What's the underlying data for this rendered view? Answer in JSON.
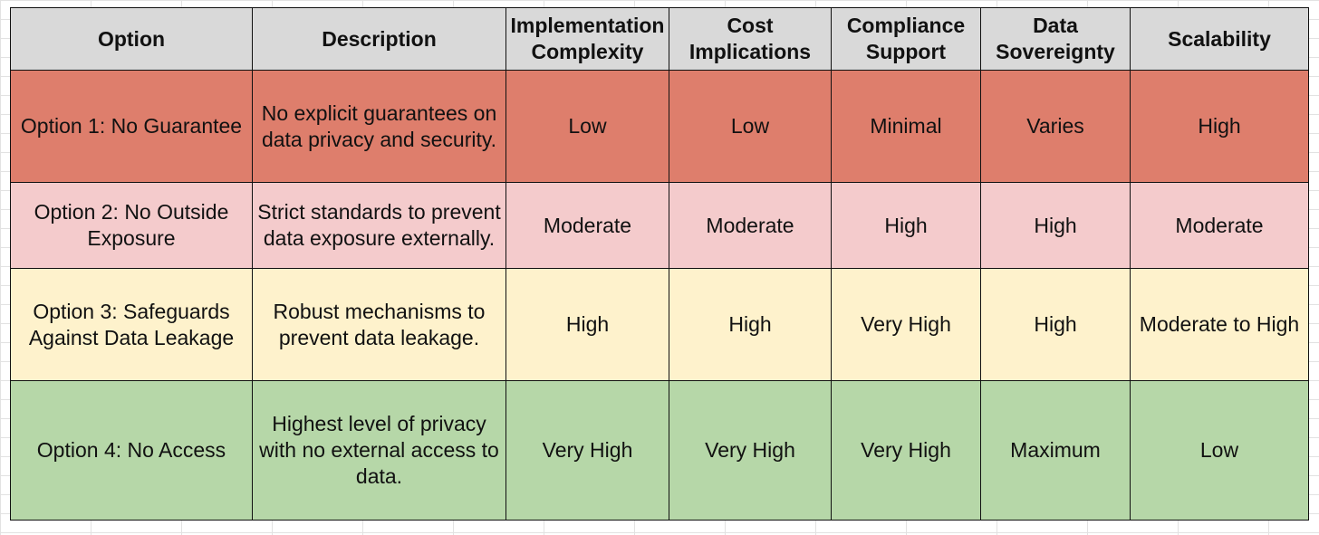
{
  "table": {
    "headers": [
      [
        "Option"
      ],
      [
        "Description"
      ],
      [
        "Implementation",
        "Complexity"
      ],
      [
        "Cost",
        "Implications"
      ],
      [
        "Compliance",
        "Support"
      ],
      [
        "Data",
        "Sovereignty"
      ],
      [
        "Scalability"
      ]
    ],
    "rows": [
      {
        "color": "#de7e6c",
        "cells": [
          "Option 1: No Guarantee",
          "No explicit guarantees on data privacy and security.",
          "Low",
          "Low",
          "Minimal",
          "Varies",
          "High"
        ]
      },
      {
        "color": "#f4cbcc",
        "cells": [
          "Option 2: No Outside Exposure",
          "Strict standards to prevent data exposure externally.",
          "Moderate",
          "Moderate",
          "High",
          "High",
          "Moderate"
        ]
      },
      {
        "color": "#fef2cc",
        "cells": [
          "Option 3: Safeguards Against Data Leakage",
          "Robust mechanisms to prevent data leakage.",
          "High",
          "High",
          "Very High",
          "High",
          "Moderate to High"
        ]
      },
      {
        "color": "#b6d7a8",
        "cells": [
          "Option 4: No Access",
          "Highest level of privacy with no external access to data.",
          "Very High",
          "Very High",
          "Very High",
          "Maximum",
          "Low"
        ]
      }
    ]
  },
  "colors": {
    "header_bg": "#d9d9d9",
    "border": "#111111",
    "gridline": "#e2e2e2"
  }
}
